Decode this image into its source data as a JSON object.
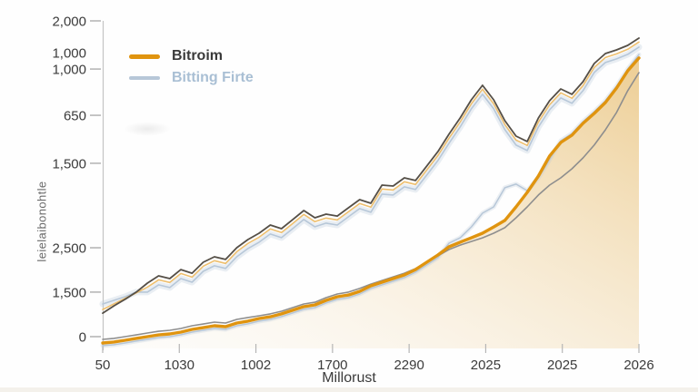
{
  "legend": {
    "items": [
      {
        "label": "Bitroim",
        "color": "#e0940f"
      },
      {
        "label": "Bitting Firte",
        "color": "#b7c7d8"
      }
    ]
  },
  "chart_data": {
    "type": "line",
    "title": "",
    "xlabel": "Millorust",
    "ylabel": "leielaibonohtle",
    "grid": false,
    "legend_position": "top-left",
    "ylim": [
      0,
      2000
    ],
    "x_ticks": [
      "50",
      "1030",
      "1002",
      "1700",
      "2290",
      "2025",
      "2025",
      "2026"
    ],
    "y_ticks": [
      {
        "label": "2,000",
        "v": 2000,
        "dash": true
      },
      {
        "label": "1,000",
        "v": 1799,
        "dash": false
      },
      {
        "label": "1,000",
        "v": 1695,
        "dash": true
      },
      {
        "label": "650",
        "v": 1402,
        "dash": true
      },
      {
        "label": "1,500",
        "v": 1098,
        "dash": true
      },
      {
        "label": "2,500",
        "v": 563,
        "dash": true
      },
      {
        "label": "1,500",
        "v": 282,
        "dash": true
      },
      {
        "label": "0",
        "v": 0,
        "dash": true
      }
    ],
    "fill_gradient": [
      [
        "0%",
        "rgba(250,246,238,0.22)"
      ],
      [
        "45%",
        "rgba(244,226,193,0.55)"
      ],
      [
        "100%",
        "rgba(236,203,142,0.95)"
      ]
    ],
    "series": [
      {
        "name": "upper-blue",
        "color": "#b7c7d8",
        "width": 1.6,
        "glow_color": "rgba(186,201,217,0.30)",
        "glow_width": 7,
        "values": [
          207,
          230,
          253,
          282,
          282,
          328,
          311,
          368,
          345,
          414,
          449,
          432,
          506,
          558,
          598,
          650,
          627,
          684,
          742,
          696,
          719,
          707,
          759,
          811,
          788,
          903,
          897,
          949,
          932,
          1023,
          1115,
          1225,
          1328,
          1443,
          1535,
          1443,
          1311,
          1213,
          1179,
          1328,
          1437,
          1512,
          1478,
          1558,
          1673,
          1736,
          1759,
          1788,
          1834
        ]
      },
      {
        "name": "upper-orange",
        "color": "#eebf6e",
        "width": 1.6,
        "values": [
          172,
          207,
          242,
          277,
          314,
          360,
          343,
          400,
          377,
          446,
          481,
          464,
          538,
          590,
          630,
          682,
          659,
          716,
          774,
          728,
          751,
          739,
          791,
          843,
          820,
          935,
          929,
          981,
          964,
          1055,
          1147,
          1257,
          1360,
          1475,
          1567,
          1475,
          1343,
          1245,
          1211,
          1360,
          1469,
          1544,
          1510,
          1590,
          1705,
          1768,
          1791,
          1820,
          1866
        ]
      },
      {
        "name": "upper-dark",
        "color": "#554f47",
        "width": 1.8,
        "values": [
          149,
          195,
          236,
          282,
          339,
          385,
          368,
          425,
          402,
          471,
          506,
          489,
          563,
          615,
          655,
          707,
          684,
          741,
          799,
          753,
          776,
          764,
          816,
          868,
          845,
          960,
          954,
          1006,
          989,
          1080,
          1172,
          1282,
          1385,
          1500,
          1592,
          1500,
          1368,
          1270,
          1236,
          1385,
          1494,
          1569,
          1535,
          1615,
          1730,
          1793,
          1816,
          1845,
          1891
        ]
      },
      {
        "name": "Bitting Firte",
        "color": "#b7c7d8",
        "width": 1.5,
        "glow_color": "rgba(186,201,217,0.28)",
        "glow_width": 5,
        "values": [
          -57,
          -51,
          -40,
          -28,
          -17,
          -6,
          0,
          12,
          29,
          40,
          52,
          46,
          69,
          81,
          98,
          109,
          127,
          150,
          173,
          184,
          213,
          236,
          247,
          270,
          305,
          328,
          351,
          374,
          408,
          454,
          500,
          592,
          626,
          695,
          782,
          822,
          943,
          966,
          925,
          1006,
          1121,
          1241,
          1287,
          1362,
          1425,
          1494,
          1586,
          1695,
          1787
        ]
      },
      {
        "name": "lower-gray",
        "color": "#8e8e8e",
        "width": 1.6,
        "values": [
          -17,
          -11,
          0,
          11,
          23,
          34,
          40,
          52,
          69,
          80,
          92,
          86,
          109,
          121,
          132,
          144,
          161,
          184,
          207,
          218,
          247,
          270,
          282,
          305,
          333,
          356,
          379,
          402,
          431,
          471,
          512,
          552,
          580,
          603,
          626,
          655,
          690,
          753,
          822,
          897,
          960,
          1006,
          1063,
          1132,
          1213,
          1310,
          1420,
          1558,
          1672
        ]
      },
      {
        "name": "Bitroim",
        "color": "#e0940f",
        "width": 3.4,
        "fill": true,
        "values": [
          -40,
          -34,
          -23,
          -11,
          0,
          11,
          17,
          29,
          46,
          57,
          69,
          63,
          86,
          98,
          115,
          126,
          144,
          167,
          190,
          201,
          230,
          253,
          264,
          287,
          322,
          345,
          368,
          391,
          425,
          471,
          517,
          569,
          598,
          626,
          655,
          695,
          736,
          822,
          914,
          1017,
          1144,
          1230,
          1276,
          1351,
          1414,
          1483,
          1575,
          1684,
          1765
        ]
      }
    ]
  }
}
